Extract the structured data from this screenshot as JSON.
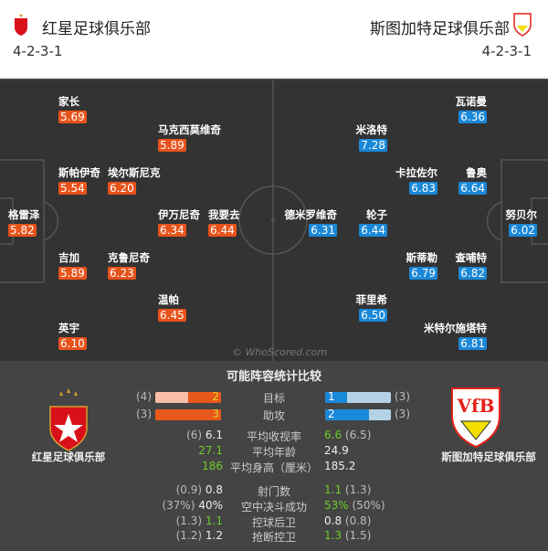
{
  "header": {
    "home": {
      "name": "红星足球俱乐部",
      "formation": "4-2-3-1"
    },
    "away": {
      "name": "斯图加特足球俱乐部",
      "formation": "4-2-3-1"
    }
  },
  "colors": {
    "home_rating": "#e8531b",
    "away_rating": "#1a88d8",
    "highlight": "#6ccc2c",
    "pitch": "#333333"
  },
  "home_players": [
    {
      "name": "家长",
      "rating": "5.69"
    },
    {
      "name": "马克西莫维奇",
      "rating": "5.89"
    },
    {
      "name": "斯帕伊奇",
      "rating": "5.54"
    },
    {
      "name": "埃尔斯尼克",
      "rating": "6.20"
    },
    {
      "name": "格雷泽",
      "rating": "5.82"
    },
    {
      "name": "伊万尼奇",
      "rating": "6.34"
    },
    {
      "name": "我要去",
      "rating": "6.44"
    },
    {
      "name": "吉加",
      "rating": "5.89"
    },
    {
      "name": "克鲁尼奇",
      "rating": "6.23"
    },
    {
      "name": "温帕",
      "rating": "6.45"
    },
    {
      "name": "英宇",
      "rating": "6.10"
    }
  ],
  "away_players": [
    {
      "name": "瓦诺曼",
      "rating": "6.36"
    },
    {
      "name": "米洛特",
      "rating": "7.28"
    },
    {
      "name": "卡拉佐尔",
      "rating": "6.83"
    },
    {
      "name": "鲁奥",
      "rating": "6.64"
    },
    {
      "name": "德米罗维奇",
      "rating": "6.31"
    },
    {
      "name": "轮子",
      "rating": "6.44"
    },
    {
      "name": "努贝尔",
      "rating": "6.02"
    },
    {
      "name": "斯蒂勒",
      "rating": "6.79"
    },
    {
      "name": "查哺特",
      "rating": "6.82"
    },
    {
      "name": "菲里希",
      "rating": "6.50"
    },
    {
      "name": "米特尔施塔特",
      "rating": "6.81"
    }
  ],
  "watermark": "© WhoScored.com",
  "stats": {
    "title": "可能阵容统计比较",
    "home_club": "红星足球俱乐部",
    "away_club": "斯图加特足球俱乐部",
    "bars": [
      {
        "label": "目标",
        "home": "2",
        "home_prev": "(4)",
        "away": "1",
        "away_prev": "(3)",
        "home_frac": 0.5,
        "away_frac": 0.33
      },
      {
        "label": "助攻",
        "home": "3",
        "home_prev": "(3)",
        "away": "2",
        "away_prev": "(3)",
        "home_frac": 1.0,
        "away_frac": 0.67
      }
    ],
    "rows": [
      {
        "label": "平均收视率",
        "home_prev": "(6)",
        "home": "6.1",
        "away": "6.6",
        "away_prev": "(6.5)",
        "win": "away"
      },
      {
        "label": "平均年龄",
        "home_prev": "",
        "home": "27.1",
        "away": "24.9",
        "away_prev": "",
        "win": "home"
      },
      {
        "label": "平均身高（厘米）",
        "home_prev": "",
        "home": "186",
        "away": "185.2",
        "away_prev": "",
        "win": "home"
      },
      {
        "label": "射门数",
        "home_prev": "(0.9)",
        "home": "0.8",
        "away": "1.1",
        "away_prev": "(1.3)",
        "win": "away"
      },
      {
        "label": "空中决斗成功",
        "home_prev": "(37%)",
        "home": "40%",
        "away": "53%",
        "away_prev": "(50%)",
        "win": "away"
      },
      {
        "label": "控球后卫",
        "home_prev": "(1.3)",
        "home": "1.1",
        "away": "0.8",
        "away_prev": "(0.8)",
        "win": "home"
      },
      {
        "label": "抢断控卫",
        "home_prev": "(1.2)",
        "home": "1.2",
        "away": "1.3",
        "away_prev": "(1.5)",
        "win": "away"
      }
    ]
  }
}
